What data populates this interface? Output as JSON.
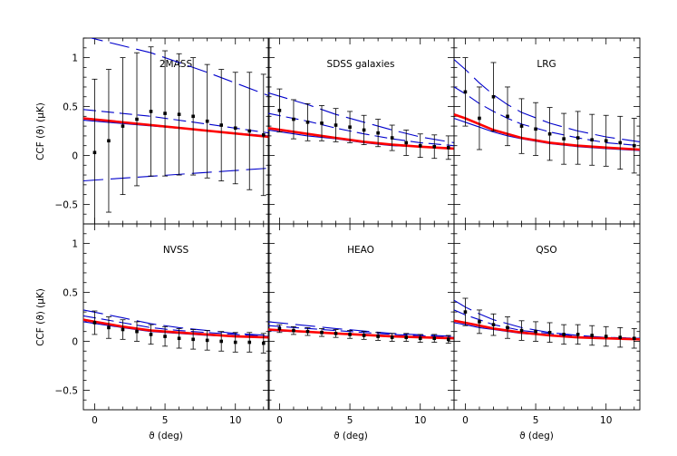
{
  "chart_data": {
    "type": "line",
    "layout": "2x3 panels, shared axes",
    "xlabel": "ϑ (deg)",
    "ylabel": "CCF (ϑ)   (μK)",
    "xlim": [
      -0.8,
      12.4
    ],
    "ylim": [
      -0.7,
      1.2
    ],
    "xticks": [
      0,
      5,
      10
    ],
    "yticks": [
      -0.5,
      0,
      0.5,
      1
    ],
    "ytick_labels": [
      "−0.5",
      "0",
      "0.5",
      "1"
    ],
    "grid": false,
    "panels": [
      {
        "name": "2MASS",
        "points": {
          "x": [
            0,
            1,
            2,
            3,
            4,
            5,
            6,
            7,
            8,
            9,
            10,
            11,
            12
          ],
          "y": [
            0.03,
            0.15,
            0.3,
            0.37,
            0.45,
            0.43,
            0.42,
            0.4,
            0.35,
            0.31,
            0.28,
            0.25,
            0.21
          ],
          "err": [
            0.75,
            0.73,
            0.7,
            0.68,
            0.66,
            0.64,
            0.62,
            0.6,
            0.58,
            0.57,
            0.57,
            0.6,
            0.62
          ]
        },
        "series": [
          {
            "style": "solid-red",
            "x": [
              -0.8,
              12.4
            ],
            "y": [
              0.38,
              0.19
            ]
          },
          {
            "style": "solid-blue",
            "x": [
              -0.8,
              12.4
            ],
            "y": [
              0.36,
              0.2
            ]
          },
          {
            "style": "dash-long",
            "x": [
              -0.8,
              4,
              8,
              12.4
            ],
            "y": [
              1.22,
              1.05,
              0.85,
              0.61
            ]
          },
          {
            "style": "dash-long",
            "x": [
              -0.8,
              12.4
            ],
            "y": [
              -0.26,
              -0.13
            ]
          },
          {
            "style": "dash-short",
            "x": [
              -0.8,
              4,
              8,
              12.4
            ],
            "y": [
              0.47,
              0.4,
              0.32,
              0.23
            ]
          }
        ]
      },
      {
        "name": "SDSS galaxies",
        "points": {
          "x": [
            0,
            1,
            2,
            3,
            4,
            5,
            6,
            7,
            8,
            9,
            10,
            11,
            12
          ],
          "y": [
            0.46,
            0.37,
            0.34,
            0.33,
            0.31,
            0.29,
            0.26,
            0.23,
            0.18,
            0.13,
            0.1,
            0.09,
            0.08
          ],
          "err": [
            0.22,
            0.2,
            0.19,
            0.18,
            0.17,
            0.16,
            0.15,
            0.14,
            0.13,
            0.13,
            0.12,
            0.12,
            0.12
          ]
        },
        "series": [
          {
            "style": "solid-red",
            "x": [
              -0.8,
              2,
              4,
              6,
              8,
              10,
              12.4
            ],
            "y": [
              0.28,
              0.22,
              0.18,
              0.14,
              0.11,
              0.09,
              0.07
            ]
          },
          {
            "style": "solid-blue",
            "x": [
              -0.8,
              2,
              4,
              6,
              8,
              10,
              12.4
            ],
            "y": [
              0.26,
              0.2,
              0.17,
              0.13,
              0.1,
              0.09,
              0.07
            ]
          },
          {
            "style": "dash-long",
            "x": [
              -0.8,
              2,
              4,
              6,
              8,
              10,
              12.4
            ],
            "y": [
              0.64,
              0.52,
              0.42,
              0.34,
              0.26,
              0.19,
              0.13
            ]
          },
          {
            "style": "dash-short",
            "x": [
              -0.8,
              2,
              4,
              6,
              8,
              10,
              12.4
            ],
            "y": [
              0.43,
              0.35,
              0.28,
              0.22,
              0.17,
              0.13,
              0.1
            ]
          }
        ]
      },
      {
        "name": "LRG",
        "points": {
          "x": [
            0,
            1,
            2,
            3,
            4,
            5,
            6,
            7,
            8,
            9,
            10,
            11,
            12
          ],
          "y": [
            0.65,
            0.38,
            0.6,
            0.4,
            0.3,
            0.27,
            0.22,
            0.17,
            0.18,
            0.16,
            0.15,
            0.13,
            0.1
          ],
          "err": [
            0.35,
            0.32,
            0.35,
            0.3,
            0.28,
            0.27,
            0.27,
            0.26,
            0.27,
            0.26,
            0.26,
            0.27,
            0.28
          ]
        },
        "series": [
          {
            "style": "solid-red",
            "x": [
              -0.8,
              0,
              1,
              2,
              3,
              4,
              6,
              8,
              10,
              12.4
            ],
            "y": [
              0.42,
              0.38,
              0.32,
              0.26,
              0.22,
              0.18,
              0.13,
              0.1,
              0.08,
              0.06
            ]
          },
          {
            "style": "solid-blue",
            "x": [
              -0.8,
              0,
              1,
              2,
              3,
              4,
              6,
              8,
              10,
              12.4
            ],
            "y": [
              0.38,
              0.34,
              0.29,
              0.24,
              0.2,
              0.17,
              0.12,
              0.09,
              0.07,
              0.05
            ]
          },
          {
            "style": "dash-long",
            "x": [
              -0.8,
              0,
              1,
              2,
              3,
              4,
              6,
              8,
              10,
              12.4
            ],
            "y": [
              0.98,
              0.88,
              0.74,
              0.62,
              0.52,
              0.44,
              0.33,
              0.25,
              0.19,
              0.14
            ]
          },
          {
            "style": "dash-short",
            "x": [
              -0.8,
              0,
              1,
              2,
              3,
              4,
              6,
              8,
              10,
              12.4
            ],
            "y": [
              0.7,
              0.63,
              0.53,
              0.45,
              0.38,
              0.32,
              0.24,
              0.18,
              0.13,
              0.1
            ]
          }
        ]
      },
      {
        "name": "NVSS",
        "points": {
          "x": [
            0,
            1,
            2,
            3,
            4,
            5,
            6,
            7,
            8,
            9,
            10,
            11,
            12
          ],
          "y": [
            0.19,
            0.14,
            0.12,
            0.1,
            0.07,
            0.05,
            0.03,
            0.02,
            0.01,
            0.0,
            -0.01,
            -0.01,
            -0.02
          ],
          "err": [
            0.12,
            0.11,
            0.1,
            0.1,
            0.1,
            0.1,
            0.1,
            0.1,
            0.1,
            0.1,
            0.1,
            0.1,
            0.1
          ]
        },
        "series": [
          {
            "style": "solid-red",
            "x": [
              -0.8,
              2,
              4,
              6,
              8,
              10,
              12.4
            ],
            "y": [
              0.22,
              0.15,
              0.11,
              0.09,
              0.07,
              0.05,
              0.04
            ]
          },
          {
            "style": "solid-blue",
            "x": [
              -0.8,
              2,
              4,
              6,
              8,
              10,
              12.4
            ],
            "y": [
              0.2,
              0.14,
              0.1,
              0.08,
              0.06,
              0.05,
              0.04
            ]
          },
          {
            "style": "dash-long",
            "x": [
              -0.8,
              2,
              4,
              6,
              8,
              10,
              12.4
            ],
            "y": [
              0.32,
              0.24,
              0.18,
              0.14,
              0.11,
              0.08,
              0.06
            ]
          },
          {
            "style": "dash-short",
            "x": [
              -0.8,
              2,
              4,
              6,
              8,
              10,
              12.4
            ],
            "y": [
              0.26,
              0.19,
              0.14,
              0.11,
              0.09,
              0.07,
              0.05
            ]
          }
        ]
      },
      {
        "name": "HEAO",
        "points": {
          "x": [
            0,
            1,
            2,
            3,
            4,
            5,
            6,
            7,
            8,
            9,
            10,
            11,
            12
          ],
          "y": [
            0.13,
            0.11,
            0.1,
            0.09,
            0.08,
            0.07,
            0.06,
            0.05,
            0.04,
            0.04,
            0.03,
            0.03,
            0.02
          ],
          "err": [
            0.04,
            0.04,
            0.04,
            0.04,
            0.04,
            0.04,
            0.04,
            0.04,
            0.04,
            0.04,
            0.04,
            0.04,
            0.04
          ]
        },
        "series": [
          {
            "style": "solid-red",
            "x": [
              -0.8,
              4,
              8,
              12.4
            ],
            "y": [
              0.12,
              0.08,
              0.05,
              0.03
            ]
          },
          {
            "style": "solid-blue",
            "x": [
              -0.8,
              4,
              8,
              12.4
            ],
            "y": [
              0.11,
              0.08,
              0.05,
              0.03
            ]
          },
          {
            "style": "dash-long",
            "x": [
              -0.8,
              4,
              8,
              12.4
            ],
            "y": [
              0.2,
              0.13,
              0.08,
              0.05
            ]
          },
          {
            "style": "dash-short",
            "x": [
              -0.8,
              4,
              8,
              12.4
            ],
            "y": [
              0.16,
              0.11,
              0.07,
              0.04
            ]
          }
        ]
      },
      {
        "name": "QSO",
        "points": {
          "x": [
            0,
            1,
            2,
            3,
            4,
            5,
            6,
            7,
            8,
            9,
            10,
            11,
            12
          ],
          "y": [
            0.3,
            0.2,
            0.17,
            0.14,
            0.11,
            0.1,
            0.09,
            0.07,
            0.07,
            0.06,
            0.05,
            0.04,
            0.03
          ],
          "err": [
            0.14,
            0.12,
            0.11,
            0.11,
            0.1,
            0.1,
            0.1,
            0.1,
            0.1,
            0.1,
            0.1,
            0.1,
            0.1
          ]
        },
        "series": [
          {
            "style": "solid-red",
            "x": [
              -0.8,
              0,
              1,
              2,
              4,
              6,
              8,
              10,
              12.4
            ],
            "y": [
              0.21,
              0.19,
              0.16,
              0.13,
              0.09,
              0.06,
              0.04,
              0.03,
              0.02
            ]
          },
          {
            "style": "solid-blue",
            "x": [
              -0.8,
              0,
              1,
              2,
              4,
              6,
              8,
              10,
              12.4
            ],
            "y": [
              0.19,
              0.17,
              0.14,
              0.12,
              0.08,
              0.06,
              0.04,
              0.03,
              0.02
            ]
          },
          {
            "style": "dash-long",
            "x": [
              -0.8,
              0,
              1,
              2,
              4,
              6,
              8,
              10,
              12.4
            ],
            "y": [
              0.42,
              0.35,
              0.28,
              0.22,
              0.14,
              0.09,
              0.06,
              0.04,
              0.03
            ]
          },
          {
            "style": "dash-short",
            "x": [
              -0.8,
              0,
              1,
              2,
              4,
              6,
              8,
              10,
              12.4
            ],
            "y": [
              0.32,
              0.27,
              0.22,
              0.17,
              0.11,
              0.08,
              0.05,
              0.04,
              0.03
            ]
          }
        ]
      }
    ]
  },
  "colors": {
    "model_red": "#ff0000",
    "model_blue": "#0000cc",
    "points": "#000000"
  }
}
